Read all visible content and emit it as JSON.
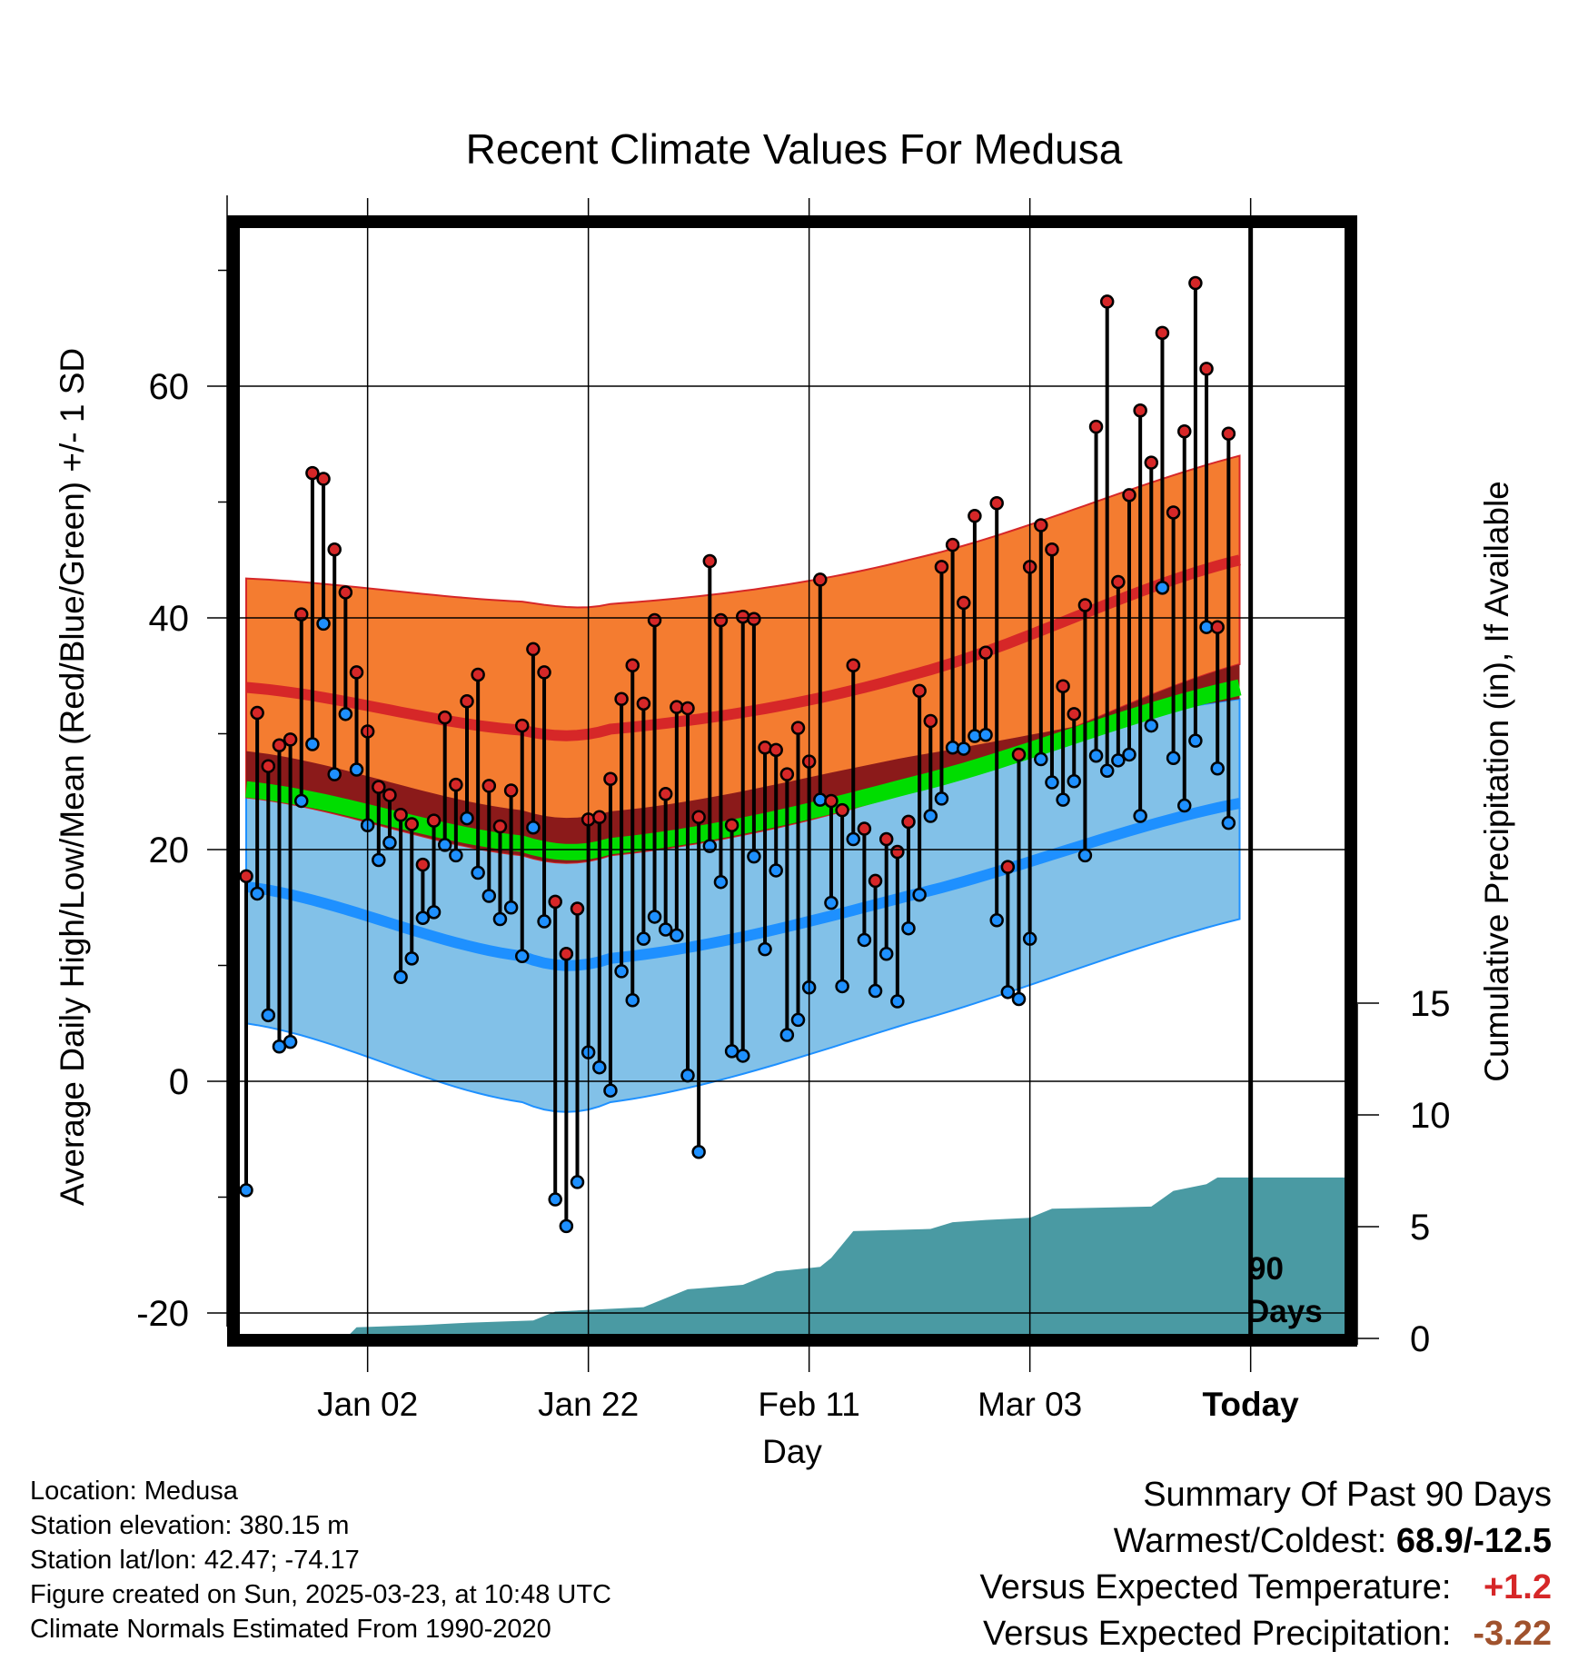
{
  "chart_data": {
    "type": "line",
    "title": "Recent Climate Values For Medusa",
    "xlabel": "Day",
    "ylabel": "Average Daily High/Low/Mean (Red/Blue/Green) +/- 1 SD",
    "y2label": "Cumulative Precipitation (in), If Available",
    "ylim": [
      -22,
      75
    ],
    "y_ticks": [
      -20,
      0,
      20,
      40,
      60
    ],
    "y2_ticks": [
      0,
      5,
      10,
      15
    ],
    "x_ticks": [
      {
        "label": "Jan 02",
        "day": 11
      },
      {
        "label": "Jan 22",
        "day": 31
      },
      {
        "label": "Feb 11",
        "day": 51
      },
      {
        "label": "Mar 03",
        "day": 71
      },
      {
        "label": "Today",
        "day": 91
      }
    ],
    "today_marker": {
      "day": 91,
      "label_1": "90",
      "label_2": "Days"
    },
    "normal_high": {
      "mean": [
        34,
        30.3,
        30.4,
        35,
        45,
        49
      ],
      "upper": [
        43.4,
        41.4,
        41.2,
        45,
        54,
        60
      ],
      "lower": [
        24.5,
        19.5,
        19.5,
        25,
        36,
        41
      ],
      "color": "#d62728",
      "band_color": "#f47c30"
    },
    "normal_low": {
      "mean": [
        16.8,
        10.8,
        10.6,
        16,
        24,
        27
      ],
      "upper": [
        28.5,
        23.4,
        23.3,
        28,
        33,
        36
      ],
      "lower": [
        5,
        -1.8,
        -1.8,
        5,
        14,
        19
      ],
      "color": "#1e90ff",
      "band_color": "#82c1e8"
    },
    "normal_mean": {
      "mean": [
        25.2,
        20.5,
        20.3,
        25.5,
        34,
        38
      ],
      "color": "#00dd00",
      "band_color": "#8b1a1a"
    },
    "normal_days": [
      0,
      25,
      33,
      60,
      90,
      100
    ],
    "daily": [
      {
        "day": 0,
        "high": 17.7,
        "low": -9.4
      },
      {
        "day": 1,
        "high": 31.8,
        "low": 16.2
      },
      {
        "day": 2,
        "high": 27.2,
        "low": 5.7
      },
      {
        "day": 3,
        "high": 29.0,
        "low": 3.0
      },
      {
        "day": 4,
        "high": 29.5,
        "low": 3.4
      },
      {
        "day": 5,
        "high": 40.3,
        "low": 24.2
      },
      {
        "day": 6,
        "high": 52.5,
        "low": 29.1
      },
      {
        "day": 7,
        "high": 52.0,
        "low": 39.5
      },
      {
        "day": 8,
        "high": 45.9,
        "low": 26.5
      },
      {
        "day": 9,
        "high": 42.2,
        "low": 31.7
      },
      {
        "day": 10,
        "high": 35.3,
        "low": 26.9
      },
      {
        "day": 11,
        "high": 30.2,
        "low": 22.1
      },
      {
        "day": 12,
        "high": 25.4,
        "low": 19.1
      },
      {
        "day": 13,
        "high": 24.7,
        "low": 20.6
      },
      {
        "day": 14,
        "high": 23.0,
        "low": 9.0
      },
      {
        "day": 15,
        "high": 22.2,
        "low": 10.6
      },
      {
        "day": 16,
        "high": 18.7,
        "low": 14.1
      },
      {
        "day": 17,
        "high": 22.5,
        "low": 14.6
      },
      {
        "day": 18,
        "high": 31.4,
        "low": 20.4
      },
      {
        "day": 19,
        "high": 25.6,
        "low": 19.5
      },
      {
        "day": 20,
        "high": 32.8,
        "low": 22.7
      },
      {
        "day": 21,
        "high": 35.1,
        "low": 18.0
      },
      {
        "day": 22,
        "high": 25.5,
        "low": 16.0
      },
      {
        "day": 23,
        "high": 22.0,
        "low": 14.0
      },
      {
        "day": 24,
        "high": 25.1,
        "low": 15.0
      },
      {
        "day": 25,
        "high": 30.7,
        "low": 10.8
      },
      {
        "day": 26,
        "high": 37.3,
        "low": 21.9
      },
      {
        "day": 27,
        "high": 35.3,
        "low": 13.8
      },
      {
        "day": 28,
        "high": 15.5,
        "low": -10.2
      },
      {
        "day": 29,
        "high": 11.0,
        "low": -12.5
      },
      {
        "day": 30,
        "high": 14.9,
        "low": -8.7
      },
      {
        "day": 31,
        "high": 22.6,
        "low": 2.5
      },
      {
        "day": 32,
        "high": 22.8,
        "low": 1.2
      },
      {
        "day": 33,
        "high": 26.1,
        "low": -0.8
      },
      {
        "day": 34,
        "high": 33.0,
        "low": 9.5
      },
      {
        "day": 35,
        "high": 35.9,
        "low": 7.0
      },
      {
        "day": 36,
        "high": 32.6,
        "low": 12.3
      },
      {
        "day": 37,
        "high": 39.8,
        "low": 14.2
      },
      {
        "day": 38,
        "high": 24.8,
        "low": 13.1
      },
      {
        "day": 39,
        "high": 32.3,
        "low": 12.6
      },
      {
        "day": 40,
        "high": 32.2,
        "low": 0.5
      },
      {
        "day": 41,
        "high": 22.8,
        "low": -6.1
      },
      {
        "day": 42,
        "high": 44.9,
        "low": 20.3
      },
      {
        "day": 43,
        "high": 39.8,
        "low": 17.2
      },
      {
        "day": 44,
        "high": 22.1,
        "low": 2.6
      },
      {
        "day": 45,
        "high": 40.1,
        "low": 2.2
      },
      {
        "day": 46,
        "high": 39.9,
        "low": 19.4
      },
      {
        "day": 47,
        "high": 28.8,
        "low": 11.4
      },
      {
        "day": 48,
        "high": 28.6,
        "low": 18.2
      },
      {
        "day": 49,
        "high": 26.5,
        "low": 4.0
      },
      {
        "day": 50,
        "high": 30.5,
        "low": 5.3
      },
      {
        "day": 51,
        "high": 27.6,
        "low": 8.1
      },
      {
        "day": 52,
        "high": 43.3,
        "low": 24.3
      },
      {
        "day": 53,
        "high": 24.2,
        "low": 15.4
      },
      {
        "day": 54,
        "high": 23.4,
        "low": 8.2
      },
      {
        "day": 55,
        "high": 35.9,
        "low": 20.9
      },
      {
        "day": 56,
        "high": 21.8,
        "low": 12.2
      },
      {
        "day": 57,
        "high": 17.3,
        "low": 7.8
      },
      {
        "day": 58,
        "high": 20.9,
        "low": 11.0
      },
      {
        "day": 59,
        "high": 19.8,
        "low": 6.9
      },
      {
        "day": 60,
        "high": 22.4,
        "low": 13.2
      },
      {
        "day": 61,
        "high": 33.7,
        "low": 16.1
      },
      {
        "day": 62,
        "high": 31.1,
        "low": 22.9
      },
      {
        "day": 63,
        "high": 44.4,
        "low": 24.4
      },
      {
        "day": 64,
        "high": 46.3,
        "low": 28.8
      },
      {
        "day": 65,
        "high": 41.3,
        "low": 28.7
      },
      {
        "day": 66,
        "high": 48.8,
        "low": 29.8
      },
      {
        "day": 67,
        "high": 37.0,
        "low": 29.9
      },
      {
        "day": 68,
        "high": 49.9,
        "low": 13.9
      },
      {
        "day": 69,
        "high": 18.5,
        "low": 7.7
      },
      {
        "day": 70,
        "high": 28.2,
        "low": 7.1
      },
      {
        "day": 71,
        "high": 44.4,
        "low": 12.3
      },
      {
        "day": 72,
        "high": 48.0,
        "low": 27.8
      },
      {
        "day": 73,
        "high": 45.9,
        "low": 25.8
      },
      {
        "day": 74,
        "high": 34.1,
        "low": 24.3
      },
      {
        "day": 75,
        "high": 31.7,
        "low": 25.9
      },
      {
        "day": 76,
        "high": 41.1,
        "low": 19.5
      },
      {
        "day": 77,
        "high": 56.5,
        "low": 28.1
      },
      {
        "day": 78,
        "high": 67.3,
        "low": 26.8
      },
      {
        "day": 79,
        "high": 43.1,
        "low": 27.7
      },
      {
        "day": 80,
        "high": 50.6,
        "low": 28.2
      },
      {
        "day": 81,
        "high": 57.9,
        "low": 22.9
      },
      {
        "day": 82,
        "high": 53.4,
        "low": 30.7
      },
      {
        "day": 83,
        "high": 64.6,
        "low": 42.6
      },
      {
        "day": 84,
        "high": 49.1,
        "low": 27.9
      },
      {
        "day": 85,
        "high": 56.1,
        "low": 23.8
      },
      {
        "day": 86,
        "high": 68.9,
        "low": 29.4
      },
      {
        "day": 87,
        "high": 61.5,
        "low": 39.2
      },
      {
        "day": 88,
        "high": 39.2,
        "low": 27.0
      },
      {
        "day": 89,
        "high": 55.9,
        "low": 22.3
      }
    ],
    "precip_cumulative": [
      {
        "day": 0,
        "v": 0
      },
      {
        "day": 9,
        "v": 0
      },
      {
        "day": 10,
        "v": 0.5
      },
      {
        "day": 16,
        "v": 0.6
      },
      {
        "day": 20,
        "v": 0.7
      },
      {
        "day": 26,
        "v": 0.8
      },
      {
        "day": 28,
        "v": 1.2
      },
      {
        "day": 36,
        "v": 1.4
      },
      {
        "day": 38,
        "v": 1.8
      },
      {
        "day": 40,
        "v": 2.2
      },
      {
        "day": 45,
        "v": 2.4
      },
      {
        "day": 48,
        "v": 3.0
      },
      {
        "day": 52,
        "v": 3.2
      },
      {
        "day": 53,
        "v": 3.6
      },
      {
        "day": 55,
        "v": 4.8
      },
      {
        "day": 62,
        "v": 4.9
      },
      {
        "day": 64,
        "v": 5.2
      },
      {
        "day": 67,
        "v": 5.3
      },
      {
        "day": 71,
        "v": 5.4
      },
      {
        "day": 73,
        "v": 5.8
      },
      {
        "day": 82,
        "v": 5.9
      },
      {
        "day": 84,
        "v": 6.6
      },
      {
        "day": 87,
        "v": 6.9
      },
      {
        "day": 88,
        "v": 7.2
      },
      {
        "day": 90,
        "v": 7.2
      },
      {
        "day": 100,
        "v": 7.2
      }
    ],
    "colors": {
      "high_dot": "#d62728",
      "low_dot": "#1e90ff",
      "precip": "#4a9aa3"
    }
  },
  "info": {
    "location": "Location: Medusa",
    "elevation": "Station elevation: 380.15 m",
    "latlon": "Station lat/lon: 42.47; -74.17",
    "created": "Figure created on Sun, 2025-03-23, at 10:48 UTC",
    "normals": "Climate Normals Estimated From 1990-2020"
  },
  "summary": {
    "heading": "Summary Of Past 90 Days",
    "warm_label": "Warmest/Coldest:",
    "warm_value": "68.9/-12.5",
    "temp_label": "Versus Expected Temperature:",
    "temp_value": "+1.2",
    "precip_label": "Versus Expected Precipitation:",
    "precip_value": "-3.22"
  }
}
